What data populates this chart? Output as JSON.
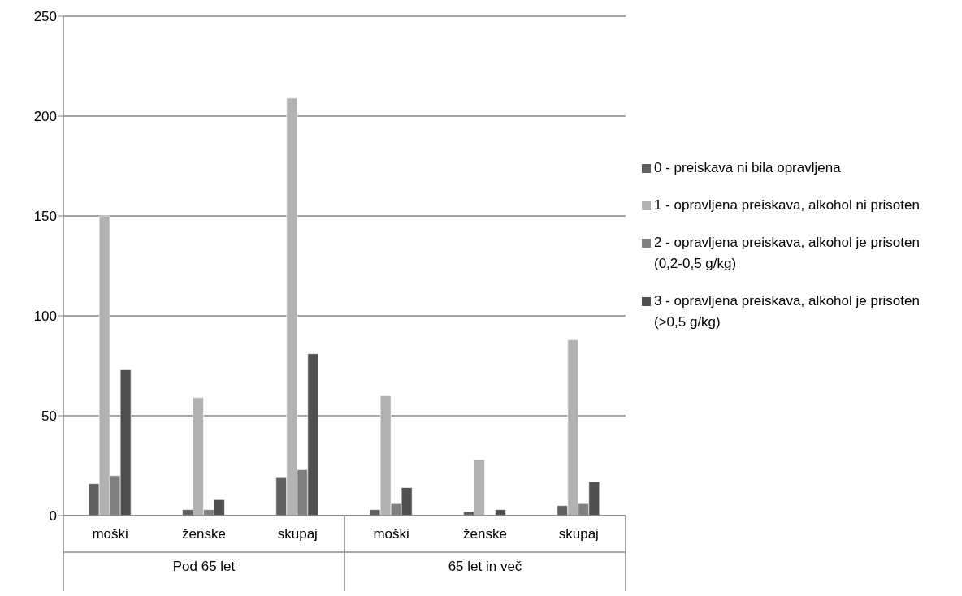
{
  "chart_data": {
    "type": "bar",
    "categories": [
      "moški",
      "ženske",
      "skupaj",
      "moški",
      "ženske",
      "skupaj"
    ],
    "annotations": [
      "Pod 65 let",
      "65 let in več"
    ],
    "series": [
      {
        "name": "0 - preiskava ni bila opravljena",
        "color": "#606060",
        "values": [
          16,
          3,
          19,
          3,
          2,
          5
        ]
      },
      {
        "name": "1 - opravljena preiskava, alkohol ni prisoten",
        "color": "#b2b2b2",
        "values": [
          150,
          59,
          209,
          60,
          28,
          88
        ]
      },
      {
        "name": "2 - opravljena preiskava, alkohol je prisoten (0,2-0,5 g/kg)",
        "color": "#808080",
        "values": [
          20,
          3,
          23,
          6,
          0,
          6
        ]
      },
      {
        "name": "3 - opravljena preiskava, alkohol je prisoten (>0,5 g/kg)",
        "color": "#505050",
        "values": [
          73,
          8,
          81,
          14,
          3,
          17
        ]
      }
    ],
    "ylim": [
      0,
      250
    ],
    "yticks": [
      0,
      50,
      100,
      150,
      200,
      250
    ],
    "grid": "y",
    "legend": "right"
  }
}
